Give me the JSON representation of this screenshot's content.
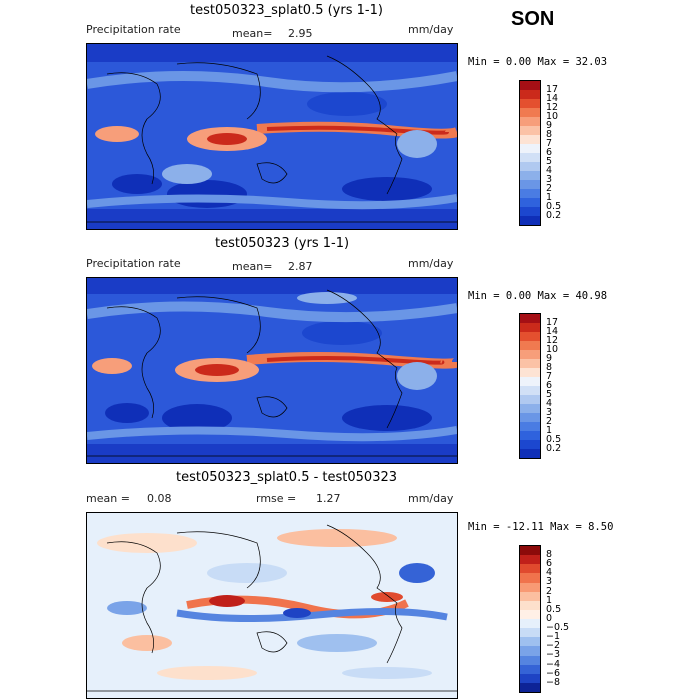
{
  "season": "SON",
  "panels": [
    {
      "title": "test050323_splat0.5 (yrs 1-1)",
      "left_label": "Precipitation rate",
      "mean_label": "mean=",
      "mean_value": "2.95",
      "units": "mm/day",
      "minmax": "Min =    0.00 Max =  32.03",
      "colorbar_labels": [
        "17",
        "14",
        "12",
        "10",
        "9",
        "8",
        "7",
        "6",
        "5",
        "4",
        "3",
        "2",
        "1",
        "0.5",
        "0.2"
      ],
      "colorbar_colors": [
        "#a50f15",
        "#cb2a1b",
        "#e4502f",
        "#f07a50",
        "#f79e7a",
        "#fbc2a6",
        "#fde3d4",
        "#eef3fb",
        "#d1e0f6",
        "#b0c9f0",
        "#8cb0ea",
        "#6a96e6",
        "#4a7ce3",
        "#2f62dd",
        "#1c47cf",
        "#0f2fb8"
      ]
    },
    {
      "title": "test050323 (yrs 1-1)",
      "left_label": "Precipitation rate",
      "mean_label": "mean=",
      "mean_value": "2.87",
      "units": "mm/day",
      "minmax": "Min =    0.00 Max =  40.98",
      "colorbar_labels": [
        "17",
        "14",
        "12",
        "10",
        "9",
        "8",
        "7",
        "6",
        "5",
        "4",
        "3",
        "2",
        "1",
        "0.5",
        "0.2"
      ],
      "colorbar_colors": [
        "#a50f15",
        "#cb2a1b",
        "#e4502f",
        "#f07a50",
        "#f79e7a",
        "#fbc2a6",
        "#fde3d4",
        "#eef3fb",
        "#d1e0f6",
        "#b0c9f0",
        "#8cb0ea",
        "#6a96e6",
        "#4a7ce3",
        "#2f62dd",
        "#1c47cf",
        "#0f2fb8"
      ]
    },
    {
      "title": "test050323_splat0.5 - test050323",
      "mean_label": "mean =",
      "mean_value": "0.08",
      "rmse_label": "rmse =",
      "rmse_value": "1.27",
      "units": "mm/day",
      "minmax": "Min = -12.11 Max =    8.50",
      "colorbar_labels": [
        "8",
        "6",
        "4",
        "3",
        "2",
        "1",
        "0.5",
        "0",
        "−0.5",
        "−1",
        "−2",
        "−3",
        "−4",
        "−6",
        "−8"
      ],
      "colorbar_colors": [
        "#8c0a0a",
        "#c0201a",
        "#e04a2e",
        "#f0734c",
        "#f89a74",
        "#fbbfa0",
        "#fde0cc",
        "#fff0e6",
        "#e6f0fb",
        "#c8dcf6",
        "#9fc0ef",
        "#7aa3e8",
        "#5584e0",
        "#3563d6",
        "#1e43c4",
        "#0d2396"
      ]
    }
  ]
}
